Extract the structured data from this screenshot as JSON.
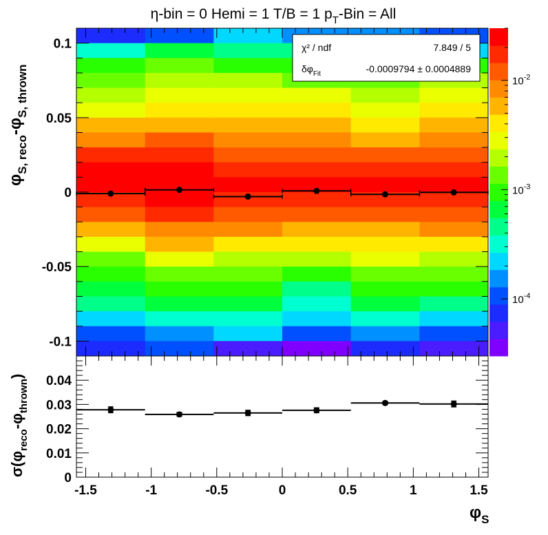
{
  "title": {
    "eta": "η-bin = 0 Hemi = 1 T/B = 1 p",
    "pt_sub": "T",
    "rest": "-Bin = All"
  },
  "colors": {
    "frame": "#000000",
    "marker": "#000000",
    "palette": [
      "#7f00ff",
      "#4a1cff",
      "#1c2cff",
      "#0050ff",
      "#0090ff",
      "#00d8ff",
      "#00ffd0",
      "#00ff8a",
      "#00ff3c",
      "#2aff00",
      "#6aff00",
      "#b4ff00",
      "#eaff00",
      "#ffea00",
      "#ffb400",
      "#ff8a00",
      "#ff5a00",
      "#ff2a00",
      "#ff0000"
    ]
  },
  "stats_box": {
    "chi2_label": "χ² / ndf",
    "chi2_value": "7.849 / 5",
    "dphi_label": "δφ",
    "dphi_sub": "Fit",
    "dphi_value": "-0.0009794 ± 0.0004889"
  },
  "top_panel": {
    "ylabel_main": "φ",
    "ylabel_sub1": "S, reco",
    "ylabel_mid": "-φ",
    "ylabel_sub2": "S, thrown",
    "yticks": [
      "0.1",
      "0.05",
      "0",
      "-0.05",
      "-0.1"
    ],
    "colorbar_ticks": [
      {
        "base": "10",
        "exp": "-2"
      },
      {
        "base": "10",
        "exp": "-3"
      },
      {
        "base": "10",
        "exp": "-4"
      }
    ]
  },
  "bottom_panel": {
    "ylabel": "σ(φ",
    "ylabel_sub1": "reco",
    "ylabel_mid": "-φ",
    "ylabel_sub2": "thrown",
    "ylabel_end": ")",
    "yticks": [
      "0.04",
      "0.03",
      "0.02",
      "0.01",
      "0"
    ],
    "xticks": [
      "-1.5",
      "-1",
      "-0.5",
      "0",
      "0.5",
      "1",
      "1.5"
    ],
    "xlabel_main": "φ",
    "xlabel_sub": "S"
  },
  "chart_data": [
    {
      "type": "heatmap",
      "title": "η-bin = 0 Hemi = 1 T/B = 1 pT-Bin = All",
      "xlabel": "φS",
      "ylabel": "φS, reco - φS, thrown",
      "x_edges": [
        -1.5708,
        -1.0472,
        -0.5236,
        0,
        0.5236,
        1.0472,
        1.5708
      ],
      "y_range": [
        -0.11,
        0.11
      ],
      "y_nbins": 22,
      "z_scale": "log",
      "z_range": [
        3e-05,
        0.03
      ],
      "legend": "colorbar right",
      "grid": false,
      "z_level_columns": [
        [
          2,
          6,
          9,
          10,
          11,
          12,
          14,
          15,
          17,
          18,
          18,
          17,
          16,
          14,
          12,
          10,
          9,
          8,
          7,
          5,
          3,
          2
        ],
        [
          3,
          8,
          10,
          11,
          12,
          13,
          14,
          16,
          17,
          18,
          18,
          18,
          17,
          15,
          14,
          12,
          10,
          9,
          8,
          6,
          4,
          3
        ],
        [
          5,
          7,
          9,
          11,
          12,
          13,
          14,
          15,
          16,
          17,
          18,
          17,
          16,
          15,
          13,
          11,
          10,
          9,
          8,
          6,
          5,
          1
        ],
        [
          4,
          7,
          9,
          10,
          12,
          13,
          14,
          15,
          16,
          17,
          18,
          17,
          16,
          14,
          13,
          11,
          9,
          7,
          6,
          5,
          3,
          0
        ],
        [
          4,
          6,
          8,
          10,
          11,
          12,
          13,
          14,
          16,
          17,
          18,
          17,
          16,
          14,
          13,
          12,
          10,
          9,
          8,
          6,
          4,
          2
        ],
        [
          3,
          5,
          9,
          11,
          12,
          13,
          14,
          15,
          16,
          17,
          18,
          17,
          16,
          15,
          13,
          11,
          10,
          9,
          7,
          5,
          3,
          1
        ]
      ],
      "fit_points": [
        {
          "x": -1.309,
          "y": -0.001,
          "xerr": 0.2618
        },
        {
          "x": -0.7854,
          "y": 0.0015,
          "xerr": 0.2618
        },
        {
          "x": -0.2618,
          "y": -0.003,
          "xerr": 0.2618
        },
        {
          "x": 0.2618,
          "y": 0.0008,
          "xerr": 0.2618
        },
        {
          "x": 0.7854,
          "y": -0.0015,
          "xerr": 0.2618
        },
        {
          "x": 1.309,
          "y": -0.0002,
          "xerr": 0.2618
        }
      ]
    },
    {
      "type": "scatter",
      "xlabel": "φS",
      "ylabel": "σ(φreco-φthrown)",
      "xlim": [
        -1.5708,
        1.5708
      ],
      "ylim": [
        0,
        0.05
      ],
      "grid": false,
      "series": [
        {
          "x": [
            -1.309,
            -0.7854,
            -0.2618,
            0.2618,
            0.7854,
            1.309
          ],
          "y": [
            0.0278,
            0.0259,
            0.0265,
            0.0276,
            0.0306,
            0.0302
          ],
          "xerr": [
            0.2618,
            0.2618,
            0.2618,
            0.2618,
            0.2618,
            0.2618
          ],
          "yerr": [
            0.0012,
            0.0008,
            0.0011,
            0.001,
            0.0007,
            0.0012
          ]
        }
      ]
    }
  ]
}
